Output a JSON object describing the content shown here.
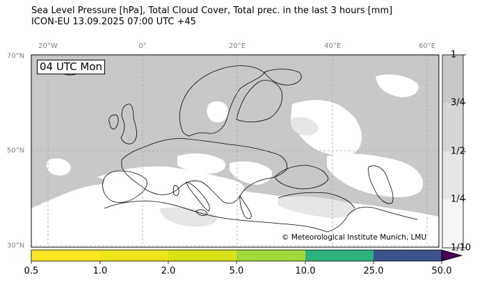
{
  "title": {
    "line1": "Sea Level Pressure [hPa], Total Cloud Cover, Total prec. in the last 3 hours [mm]",
    "line2": "ICON-EU 13.09.2025 07:00 UTC +45"
  },
  "timestamp_box": "04 UTC Mon",
  "credit": "© Meteorological Institute Munich, LMU",
  "axes": {
    "lon_labels": [
      "20°W",
      "0°",
      "20°E",
      "40°E",
      "60°E"
    ],
    "lat_labels": [
      "70°N",
      "50°N",
      "30°N"
    ]
  },
  "cloud_colorbar": {
    "labels": [
      "1",
      "3/4",
      "1/2",
      "1/4",
      "1/10"
    ],
    "colors": [
      "#c8c8c8",
      "#d6d6d6",
      "#e6e6e6",
      "#f6f6f6"
    ]
  },
  "precip_colorbar": {
    "labels": [
      "0.5",
      "1.0",
      "2.0",
      "5.0",
      "10.0",
      "25.0",
      "50.0"
    ],
    "colors": [
      "#fde725",
      "#d7e219",
      "#a2d93a",
      "#5ec962",
      "#2db27d",
      "#3b528b",
      "#440154"
    ]
  },
  "colors": {
    "cloud": "#c8c8c8",
    "land_clear": "#ffffff",
    "grid": "#a6a6a6",
    "coast": "#000000"
  }
}
